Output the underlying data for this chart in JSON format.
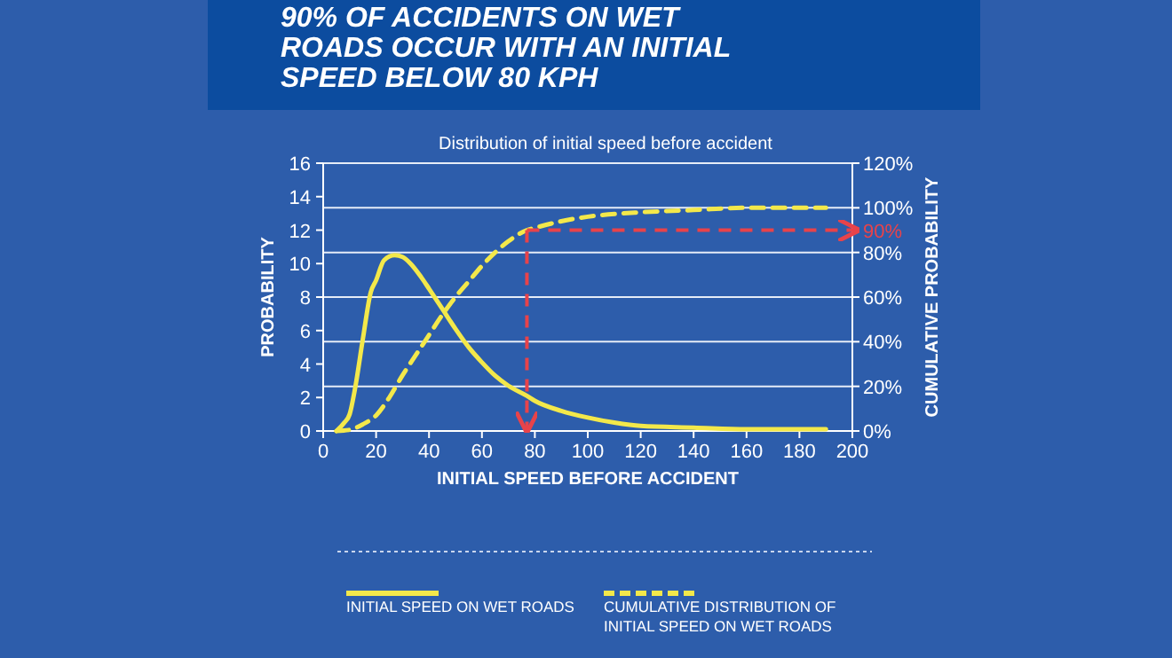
{
  "chart_data": {
    "type": "line",
    "title": "90% OF ACCIDENTS ON WET\nROADS OCCUR WITH AN INITIAL\nSPEED BELOW 80 KPH",
    "subtitle": "Distribution of initial speed before accident",
    "xlabel": "INITIAL SPEED BEFORE ACCIDENT",
    "ylabel": "PROBABILITY",
    "y2label": "CUMULATIVE PROBABILITY",
    "xlim": [
      0,
      200
    ],
    "xticks": [
      0,
      20,
      40,
      60,
      80,
      100,
      120,
      140,
      160,
      180,
      200
    ],
    "ylim": [
      0,
      16
    ],
    "yticks": [
      0,
      2,
      4,
      6,
      8,
      10,
      12,
      14,
      16
    ],
    "y2lim": [
      0,
      120
    ],
    "y2ticks": [
      {
        "value": 0,
        "label": "0%"
      },
      {
        "value": 20,
        "label": "20%"
      },
      {
        "value": 40,
        "label": "40%"
      },
      {
        "value": 60,
        "label": "60%"
      },
      {
        "value": 80,
        "label": "80%"
      },
      {
        "value": 100,
        "label": "100%"
      },
      {
        "value": 120,
        "label": "120%"
      }
    ],
    "grid": "y2",
    "legend": "bottom",
    "marker": "none",
    "series": [
      {
        "name": "INITIAL SPEED ON WET ROADS",
        "color": "#f3e84a",
        "line_style": "solid",
        "x": [
          5,
          8,
          10,
          12,
          15,
          18,
          20,
          23,
          27,
          30,
          33,
          37,
          40,
          45,
          50,
          55,
          60,
          65,
          70,
          77,
          80,
          90,
          100,
          110,
          120,
          140,
          160,
          190
        ],
        "values": [
          0,
          0.5,
          1,
          2.5,
          5.5,
          8.3,
          9,
          10.2,
          10.5,
          10.4,
          10,
          9.2,
          8.5,
          7.3,
          6.1,
          5,
          4.1,
          3.3,
          2.7,
          2.1,
          1.8,
          1.2,
          0.8,
          0.5,
          0.3,
          0.2,
          0.1,
          0.1
        ]
      },
      {
        "name": "CUMULATIVE DISTRIBUTION OF\nINITIAL SPEED ON WET ROADS",
        "color": "#f3e84a",
        "line_style": "dashed",
        "axis": "y2",
        "x": [
          5,
          10,
          15,
          20,
          25,
          30,
          35,
          40,
          45,
          50,
          55,
          60,
          65,
          70,
          77,
          80,
          90,
          100,
          120,
          140,
          160,
          190
        ],
        "values": [
          0,
          0.5,
          3,
          7,
          15,
          25,
          34,
          43,
          52,
          60,
          67,
          74,
          80,
          85,
          90,
          91,
          94,
          96,
          98,
          99,
          100,
          100
        ]
      }
    ],
    "ref_lines": [
      {
        "axis": "x",
        "value": 77,
        "color": "#e8434a",
        "line_style": "dashed"
      },
      {
        "axis": "y2",
        "value": 90,
        "label": "90%",
        "color": "#e8434a",
        "line_style": "dashed"
      }
    ]
  }
}
